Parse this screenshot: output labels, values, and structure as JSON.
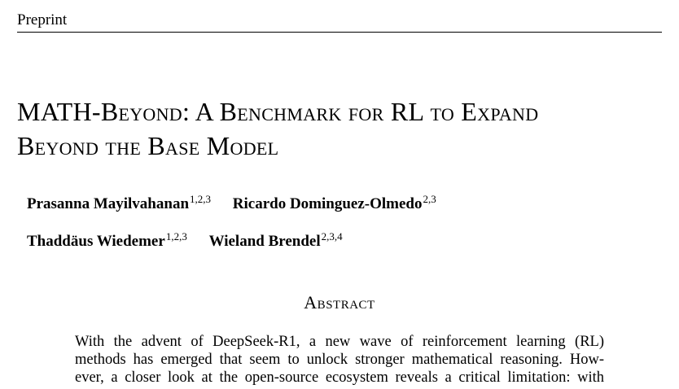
{
  "header": {
    "label": "Preprint"
  },
  "title": {
    "line1": "MATH-Beyond: A Benchmark for RL to Expand",
    "line2": "Beyond the Base Model"
  },
  "authors": [
    {
      "name": "Prasanna Mayilvahanan",
      "aff": "1,2,3"
    },
    {
      "name": "Ricardo Dominguez-Olmedo",
      "aff": "2,3"
    },
    {
      "name": "Thaddäus Wiedemer",
      "aff": "1,2,3"
    },
    {
      "name": "Wieland Brendel",
      "aff": "2,3,4"
    }
  ],
  "abstract": {
    "heading": "Abstract",
    "lines": [
      "With the advent of DeepSeek-R1, a new wave of reinforcement learning (RL)",
      "methods has emerged that seem to unlock stronger mathematical reasoning. How-",
      "ever, a closer look at the open-source ecosystem reveals a critical limitation: with"
    ]
  }
}
